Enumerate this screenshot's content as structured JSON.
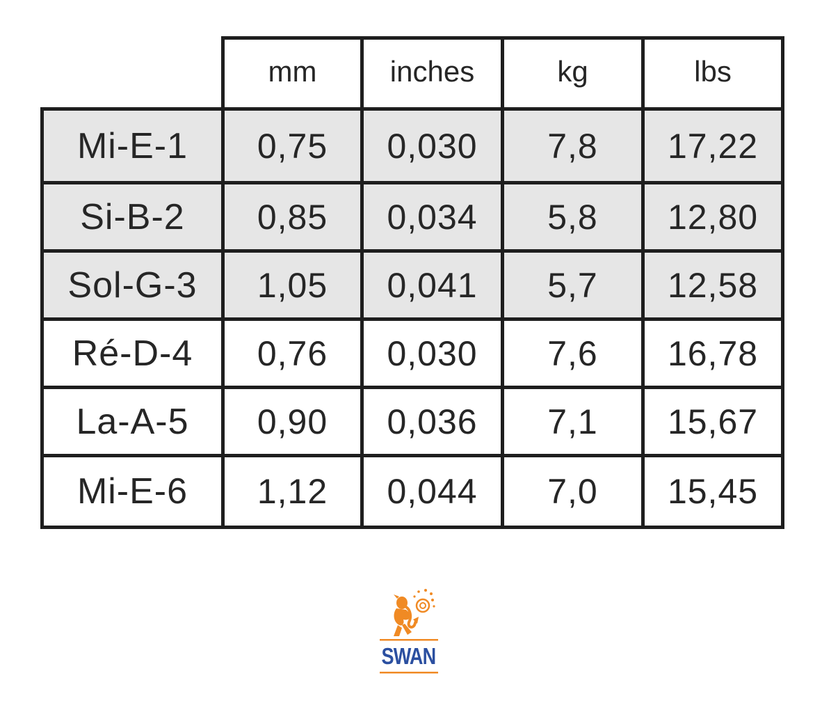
{
  "table": {
    "headers": [
      "mm",
      "inches",
      "kg",
      "lbs"
    ],
    "rows": [
      {
        "label": "Mi-E-1",
        "values": [
          "0,75",
          "0,030",
          "7,8",
          "17,22"
        ],
        "shaded": true
      },
      {
        "label": "Si-B-2",
        "values": [
          "0,85",
          "0,034",
          "5,8",
          "12,80"
        ],
        "shaded": true
      },
      {
        "label": "Sol-G-3",
        "values": [
          "1,05",
          "0,041",
          "5,7",
          "12,58"
        ],
        "shaded": true
      },
      {
        "label": "Ré-D-4",
        "values": [
          "0,76",
          "0,030",
          "7,6",
          "16,78"
        ],
        "shaded": false
      },
      {
        "label": "La-A-5",
        "values": [
          "0,90",
          "0,036",
          "7,1",
          "15,67"
        ],
        "shaded": false
      },
      {
        "label": "Mi-E-6",
        "values": [
          "1,12",
          "0,044",
          "7,0",
          "15,45"
        ],
        "shaded": false
      }
    ]
  },
  "logo": {
    "text": "SWAN",
    "text_color": "#2b4fa0",
    "accent_color": "#f08a24",
    "icon": "saxophone-player-icon"
  },
  "colors": {
    "border": "#1e1e1e",
    "shaded_row": "#e6e6e6",
    "text": "#262626"
  }
}
